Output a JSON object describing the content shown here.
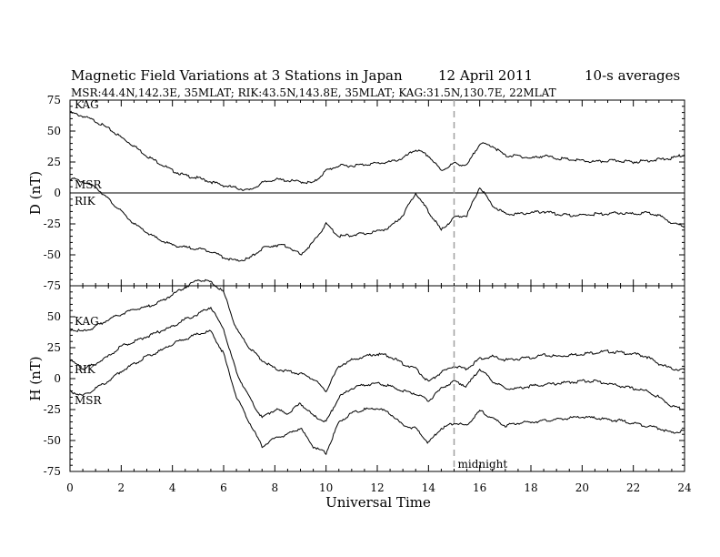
{
  "title": {
    "main": "Magnetic Field Variations at 3 Stations in Japan",
    "date": "12  April    2011",
    "avg": "10-s averages",
    "stations": "MSR:44.4N,142.3E, 35MLAT;   RIK:43.5N,143.8E, 35MLAT;   KAG:31.5N,130.7E, 22MLAT"
  },
  "chart_data": {
    "type": "line",
    "xlabel": "Universal Time",
    "x_ticks": [
      "0",
      "2",
      "4",
      "6",
      "8",
      "10",
      "12",
      "14",
      "16",
      "18",
      "20",
      "22",
      "24"
    ],
    "xlim": [
      0,
      24
    ],
    "annotation": {
      "label": "midnight",
      "x": 15
    },
    "panels": [
      {
        "ylabel": "D (nT)",
        "ylim": [
          -75,
          75
        ],
        "y_ticks": [
          "75",
          "50",
          "25",
          "0",
          "-25",
          "-50",
          "-75"
        ],
        "zero_line": true,
        "series": [
          {
            "name": "KAG",
            "x": [
              0,
              0.5,
              1,
              1.5,
              2,
              2.5,
              3,
              3.5,
              4,
              4.5,
              5,
              5.5,
              6,
              6.5,
              7,
              7.5,
              8,
              8.5,
              9,
              9.5,
              10,
              10.5,
              11,
              11.5,
              12,
              12.5,
              13,
              13.5,
              14,
              14.5,
              15,
              15.5,
              16,
              16.5,
              17,
              17.5,
              18,
              18.5,
              19,
              19.5,
              20,
              20.5,
              21,
              21.5,
              22,
              22.5,
              23,
              23.5,
              24
            ],
            "y": [
              65,
              62,
              58,
              52,
              45,
              38,
              30,
              24,
              18,
              14,
              12,
              9,
              6,
              4,
              2,
              8,
              11,
              10,
              9,
              8,
              18,
              22,
              22,
              23,
              24,
              25,
              28,
              35,
              30,
              18,
              24,
              22,
              40,
              38,
              30,
              30,
              28,
              30,
              28,
              27,
              26,
              25,
              26,
              26,
              25,
              26,
              27,
              28,
              31
            ]
          },
          {
            "name": "MSR",
            "x": [
              0,
              24
            ],
            "y": [
              0,
              0
            ]
          },
          {
            "name": "RIK",
            "x": [
              0,
              0.5,
              1,
              1.5,
              2,
              2.5,
              3,
              3.5,
              4,
              4.5,
              5,
              5.5,
              6,
              6.5,
              7,
              7.5,
              8,
              8.5,
              9,
              9.5,
              10,
              10.5,
              11,
              11.5,
              12,
              12.5,
              13,
              13.5,
              14,
              14.5,
              15,
              15.5,
              16,
              16.5,
              17,
              17.5,
              18,
              18.5,
              19,
              19.5,
              20,
              20.5,
              21,
              21.5,
              22,
              22.5,
              23,
              23.5,
              24
            ],
            "y": [
              12,
              9,
              5,
              -5,
              -15,
              -25,
              -32,
              -38,
              -42,
              -44,
              -45,
              -47,
              -52,
              -55,
              -53,
              -45,
              -42,
              -43,
              -50,
              -40,
              -25,
              -35,
              -34,
              -33,
              -31,
              -28,
              -18,
              0,
              -15,
              -30,
              -20,
              -18,
              5,
              -10,
              -17,
              -17,
              -16,
              -15,
              -17,
              -18,
              -18,
              -17,
              -17,
              -16,
              -17,
              -16,
              -18,
              -24,
              -27
            ]
          }
        ]
      },
      {
        "ylabel": "H (nT)",
        "ylim": [
          -75,
          75
        ],
        "y_ticks": [
          "50",
          "25",
          "0",
          "-25",
          "-50",
          "-75"
        ],
        "zero_line": false,
        "series": [
          {
            "name": "KAG",
            "x": [
              0,
              0.5,
              1,
              1.5,
              2,
              2.5,
              3,
              3.5,
              4,
              4.5,
              5,
              5.5,
              6,
              6.5,
              7,
              7.5,
              8,
              8.5,
              9,
              9.5,
              10,
              10.5,
              11,
              11.5,
              12,
              12.5,
              13,
              13.5,
              14,
              14.5,
              15,
              15.5,
              16,
              16.5,
              17,
              17.5,
              18,
              18.5,
              19,
              19.5,
              20,
              20.5,
              21,
              21.5,
              22,
              22.5,
              23,
              23.5,
              24
            ],
            "y": [
              40,
              38,
              42,
              48,
              52,
              56,
              58,
              62,
              68,
              74,
              80,
              78,
              70,
              40,
              25,
              15,
              8,
              6,
              4,
              0,
              -10,
              10,
              15,
              18,
              20,
              18,
              12,
              8,
              -3,
              5,
              10,
              8,
              16,
              18,
              15,
              16,
              17,
              19,
              18,
              19,
              20,
              21,
              22,
              21,
              20,
              18,
              12,
              8,
              7
            ]
          },
          {
            "name": "RIK",
            "x": [
              0,
              0.5,
              1,
              1.5,
              2,
              2.5,
              3,
              3.5,
              4,
              4.5,
              5,
              5.5,
              6,
              6.5,
              7,
              7.5,
              8,
              8.5,
              9,
              9.5,
              10,
              10.5,
              11,
              11.5,
              12,
              12.5,
              13,
              13.5,
              14,
              14.5,
              15,
              15.5,
              16,
              16.5,
              17,
              17.5,
              18,
              18.5,
              19,
              19.5,
              20,
              20.5,
              21,
              21.5,
              22,
              22.5,
              23,
              23.5,
              24
            ],
            "y": [
              15,
              8,
              12,
              18,
              26,
              30,
              34,
              38,
              42,
              48,
              52,
              58,
              40,
              5,
              -15,
              -32,
              -25,
              -28,
              -20,
              -30,
              -35,
              -15,
              -8,
              -5,
              -4,
              -6,
              -10,
              -12,
              -18,
              -8,
              -2,
              -6,
              8,
              -2,
              -8,
              -8,
              -6,
              -5,
              -4,
              -3,
              -2,
              -2,
              -4,
              -6,
              -8,
              -10,
              -15,
              -22,
              -25
            ]
          },
          {
            "name": "MSR",
            "x": [
              0,
              0.5,
              1,
              1.5,
              2,
              2.5,
              3,
              3.5,
              4,
              4.5,
              5,
              5.5,
              6,
              6.5,
              7,
              7.5,
              8,
              8.5,
              9,
              9.5,
              10,
              10.5,
              11,
              11.5,
              12,
              12.5,
              13,
              13.5,
              14,
              14.5,
              15,
              15.5,
              16,
              16.5,
              17,
              17.5,
              18,
              18.5,
              19,
              19.5,
              20,
              20.5,
              21,
              21.5,
              22,
              22.5,
              23,
              23.5,
              24
            ],
            "y": [
              -10,
              -14,
              -8,
              -2,
              6,
              12,
              18,
              22,
              28,
              32,
              36,
              38,
              20,
              -15,
              -35,
              -55,
              -48,
              -45,
              -40,
              -55,
              -60,
              -35,
              -28,
              -25,
              -24,
              -28,
              -38,
              -40,
              -52,
              -40,
              -36,
              -38,
              -26,
              -32,
              -38,
              -36,
              -35,
              -34,
              -33,
              -32,
              -31,
              -32,
              -33,
              -34,
              -36,
              -38,
              -40,
              -44,
              -42
            ]
          }
        ]
      }
    ]
  }
}
